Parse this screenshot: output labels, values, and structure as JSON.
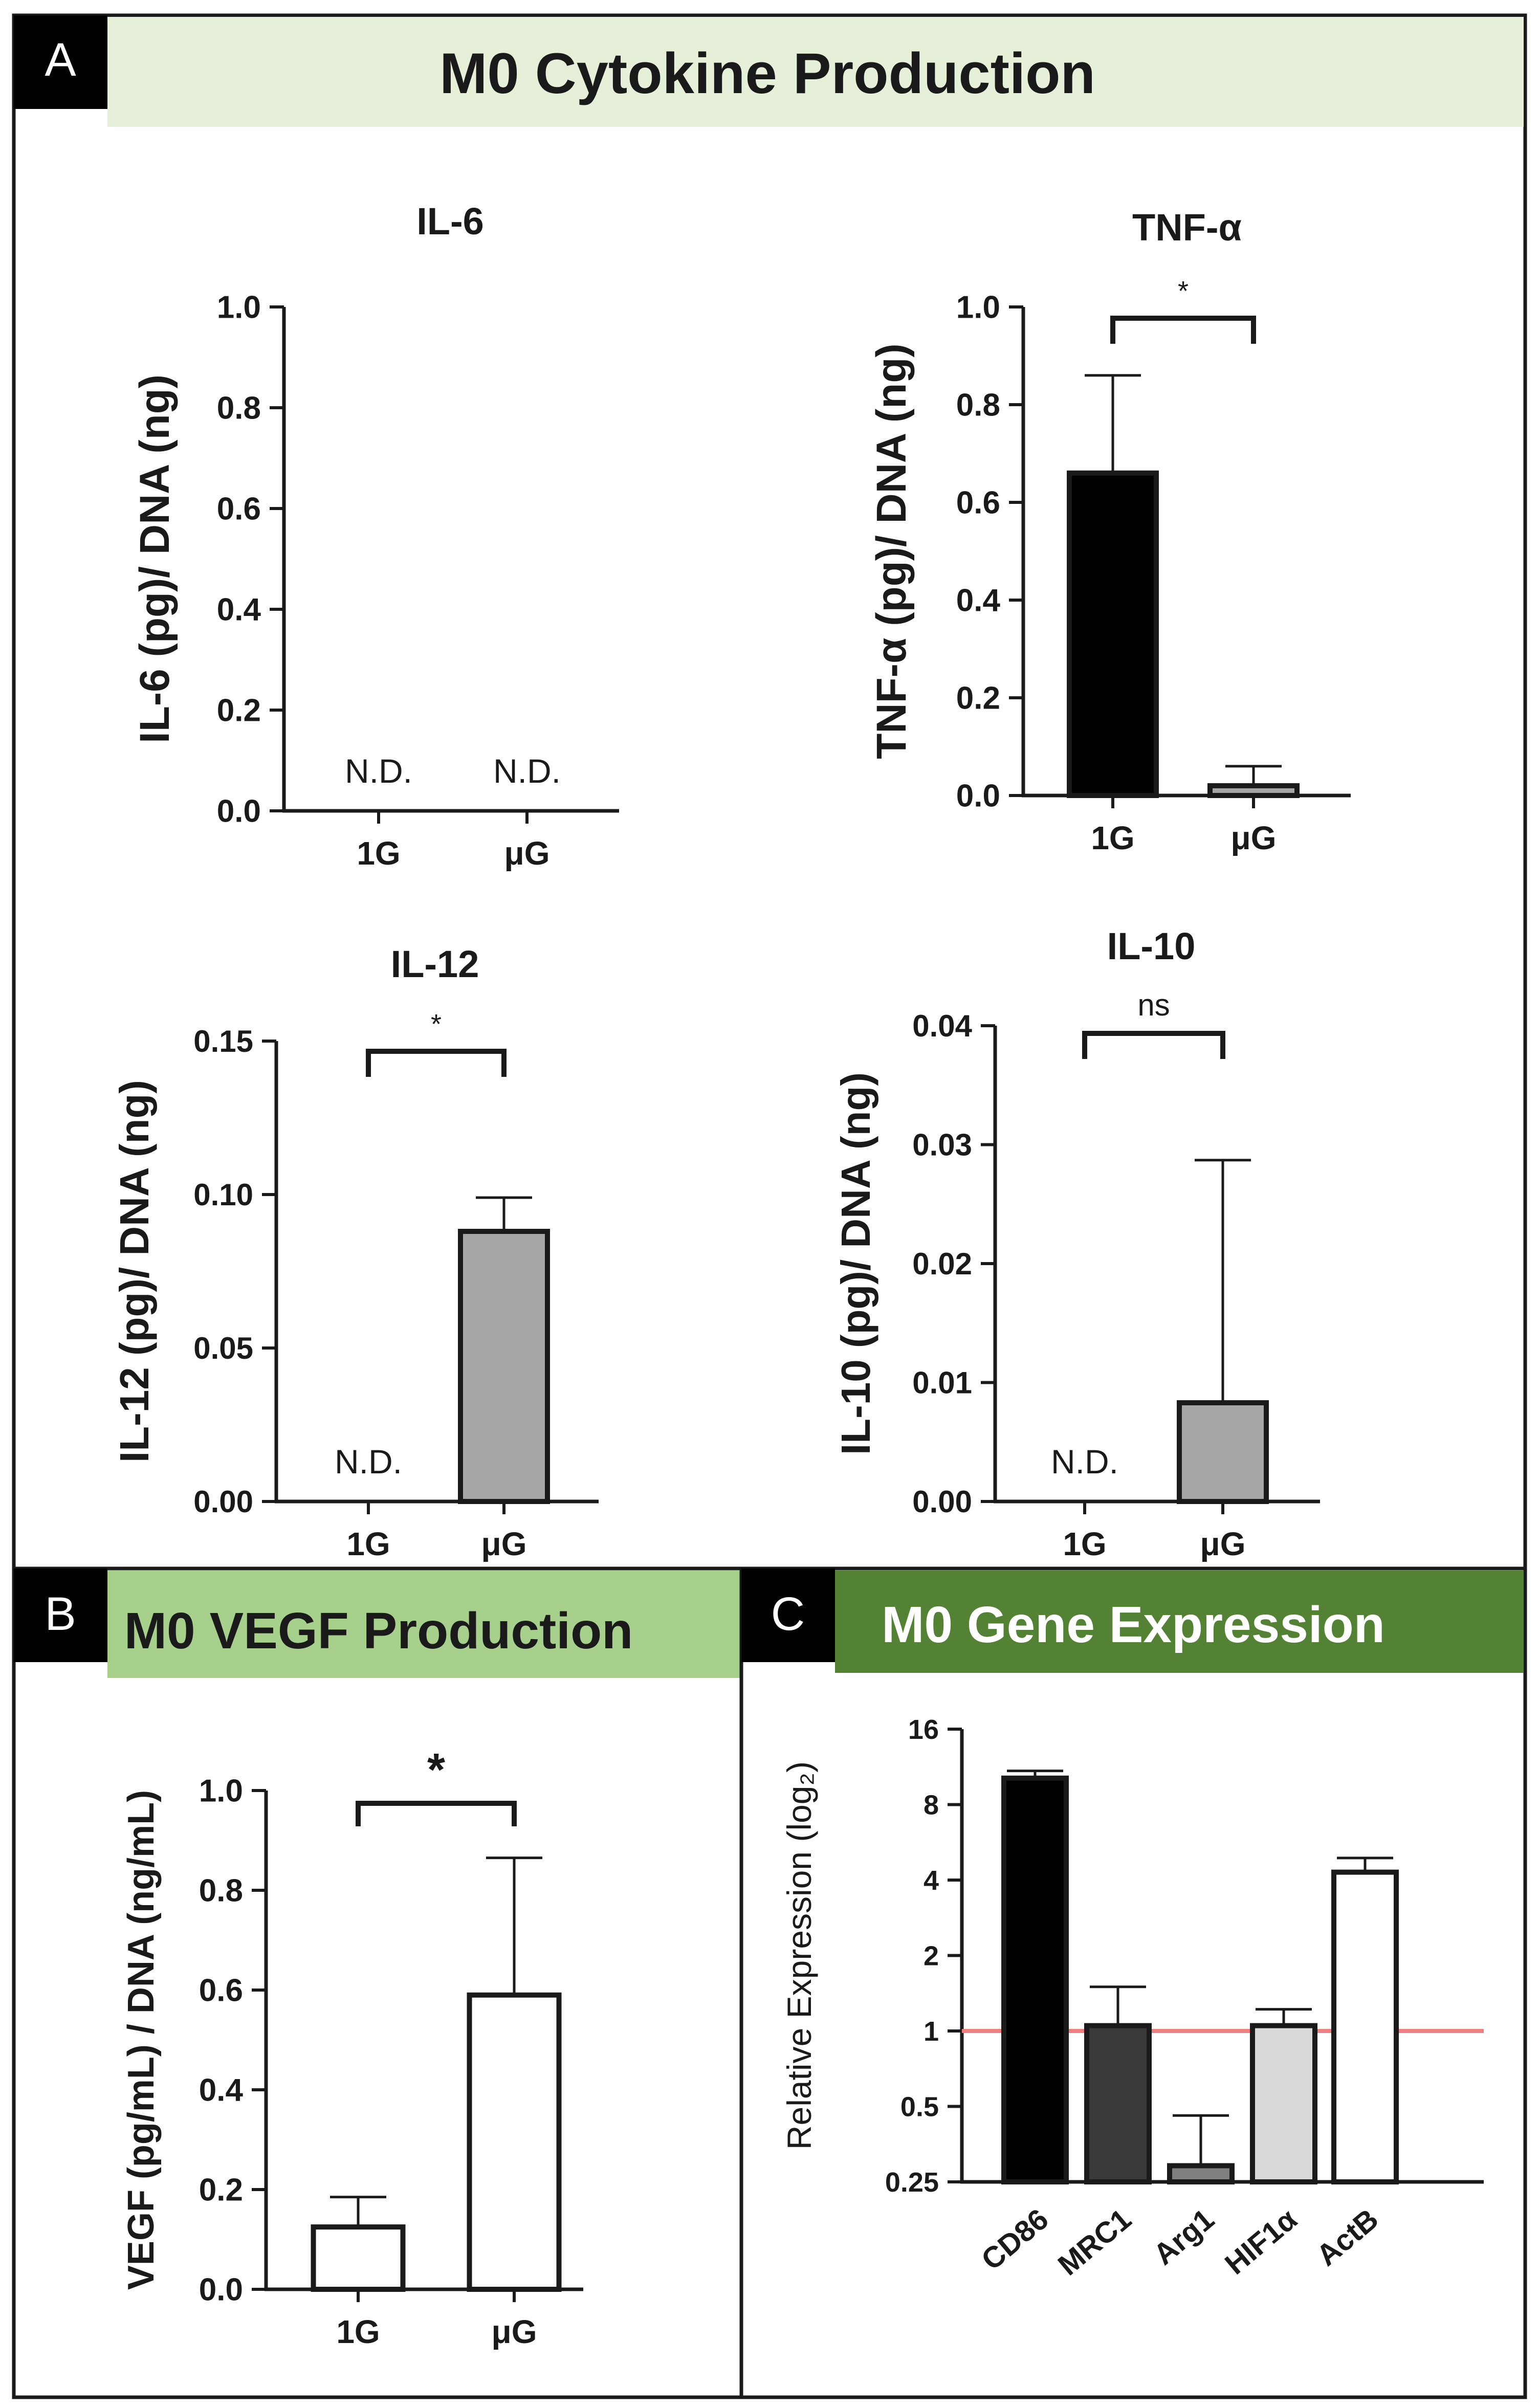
{
  "panels": {
    "a": {
      "letter": "A",
      "header": "M0 Cytokine Production",
      "header_bg": "#e6f0d9"
    },
    "b": {
      "letter": "B",
      "header": "M0 VEGF Production",
      "header_bg": "#a8d08d"
    },
    "c": {
      "letter": "C",
      "header": "M0 Gene Expression",
      "header_bg": "#548235"
    }
  },
  "chart_data": [
    {
      "id": "il6",
      "type": "bar",
      "title": "IL-6",
      "ylabel": "IL-6 (pg)/ DNA (ng)",
      "xlabel": "",
      "categories": [
        "1G",
        "μG"
      ],
      "values": [
        null,
        null
      ],
      "bar_labels": [
        "N.D.",
        "N.D."
      ],
      "ylim": [
        0,
        1.0
      ],
      "yticks": [
        "0.0",
        "0.2",
        "0.4",
        "0.6",
        "0.8",
        "1.0"
      ],
      "colors": [
        "#000000",
        "#a6a6a6"
      ]
    },
    {
      "id": "tnfa",
      "type": "bar",
      "title": "TNF-α",
      "ylabel": "TNF-α (pg)/ DNA (ng)",
      "xlabel": "",
      "categories": [
        "1G",
        "μG"
      ],
      "values": [
        0.66,
        0.02
      ],
      "errors": [
        0.2,
        0.04
      ],
      "ylim": [
        0,
        1.0
      ],
      "yticks": [
        "0.0",
        "0.2",
        "0.4",
        "0.6",
        "0.8",
        "1.0"
      ],
      "significance": "*",
      "colors": [
        "#000000",
        "#a6a6a6"
      ]
    },
    {
      "id": "il12",
      "type": "bar",
      "title": "IL-12",
      "ylabel": "IL-12 (pg)/ DNA (ng)",
      "xlabel": "",
      "categories": [
        "1G",
        "μG"
      ],
      "values": [
        null,
        0.088
      ],
      "errors": [
        null,
        0.011
      ],
      "bar_labels": [
        "N.D.",
        ""
      ],
      "ylim": [
        0,
        0.15
      ],
      "yticks": [
        "0.00",
        "0.05",
        "0.10",
        "0.15"
      ],
      "significance": "*",
      "colors": [
        "#000000",
        "#a6a6a6"
      ]
    },
    {
      "id": "il10",
      "type": "bar",
      "title": "IL-10",
      "ylabel": "IL-10 (pg)/ DNA (ng)",
      "xlabel": "",
      "categories": [
        "1G",
        "μG"
      ],
      "values": [
        null,
        0.0083
      ],
      "errors": [
        null,
        0.0204
      ],
      "bar_labels": [
        "N.D.",
        ""
      ],
      "ylim": [
        0,
        0.04
      ],
      "yticks": [
        "0.00",
        "0.01",
        "0.02",
        "0.03",
        "0.04"
      ],
      "significance": "ns",
      "colors": [
        "#000000",
        "#a6a6a6"
      ]
    },
    {
      "id": "vegf",
      "type": "bar",
      "title": "",
      "ylabel": "VEGF (pg/mL) / DNA (ng/mL)",
      "xlabel": "",
      "categories": [
        "1G",
        "μG"
      ],
      "values": [
        0.125,
        0.59
      ],
      "errors": [
        0.06,
        0.275
      ],
      "ylim": [
        0,
        1.0
      ],
      "yticks": [
        "0.0",
        "0.2",
        "0.4",
        "0.6",
        "0.8",
        "1.0"
      ],
      "significance": "*",
      "colors": [
        "#ffffff",
        "#ffffff"
      ]
    },
    {
      "id": "gene",
      "type": "bar",
      "title": "",
      "ylabel": "Relative Expression (log₂)",
      "xlabel": "",
      "yscale": "log2",
      "categories": [
        "CD86",
        "MRC1",
        "Arg1",
        "HIF1α",
        "ActB"
      ],
      "values": [
        10.2,
        1.05,
        0.29,
        1.05,
        4.3
      ],
      "errors": [
        0.7,
        0.45,
        0.17,
        0.17,
        0.6
      ],
      "ylim": [
        0.25,
        16
      ],
      "yticks": [
        "0.25",
        "0.5",
        "1",
        "2",
        "4",
        "8",
        "16"
      ],
      "reference_line": 1,
      "reference_color": "#f08080",
      "colors": [
        "#000000",
        "#3a3a3a",
        "#808080",
        "#d9d9d9",
        "#ffffff"
      ]
    }
  ]
}
